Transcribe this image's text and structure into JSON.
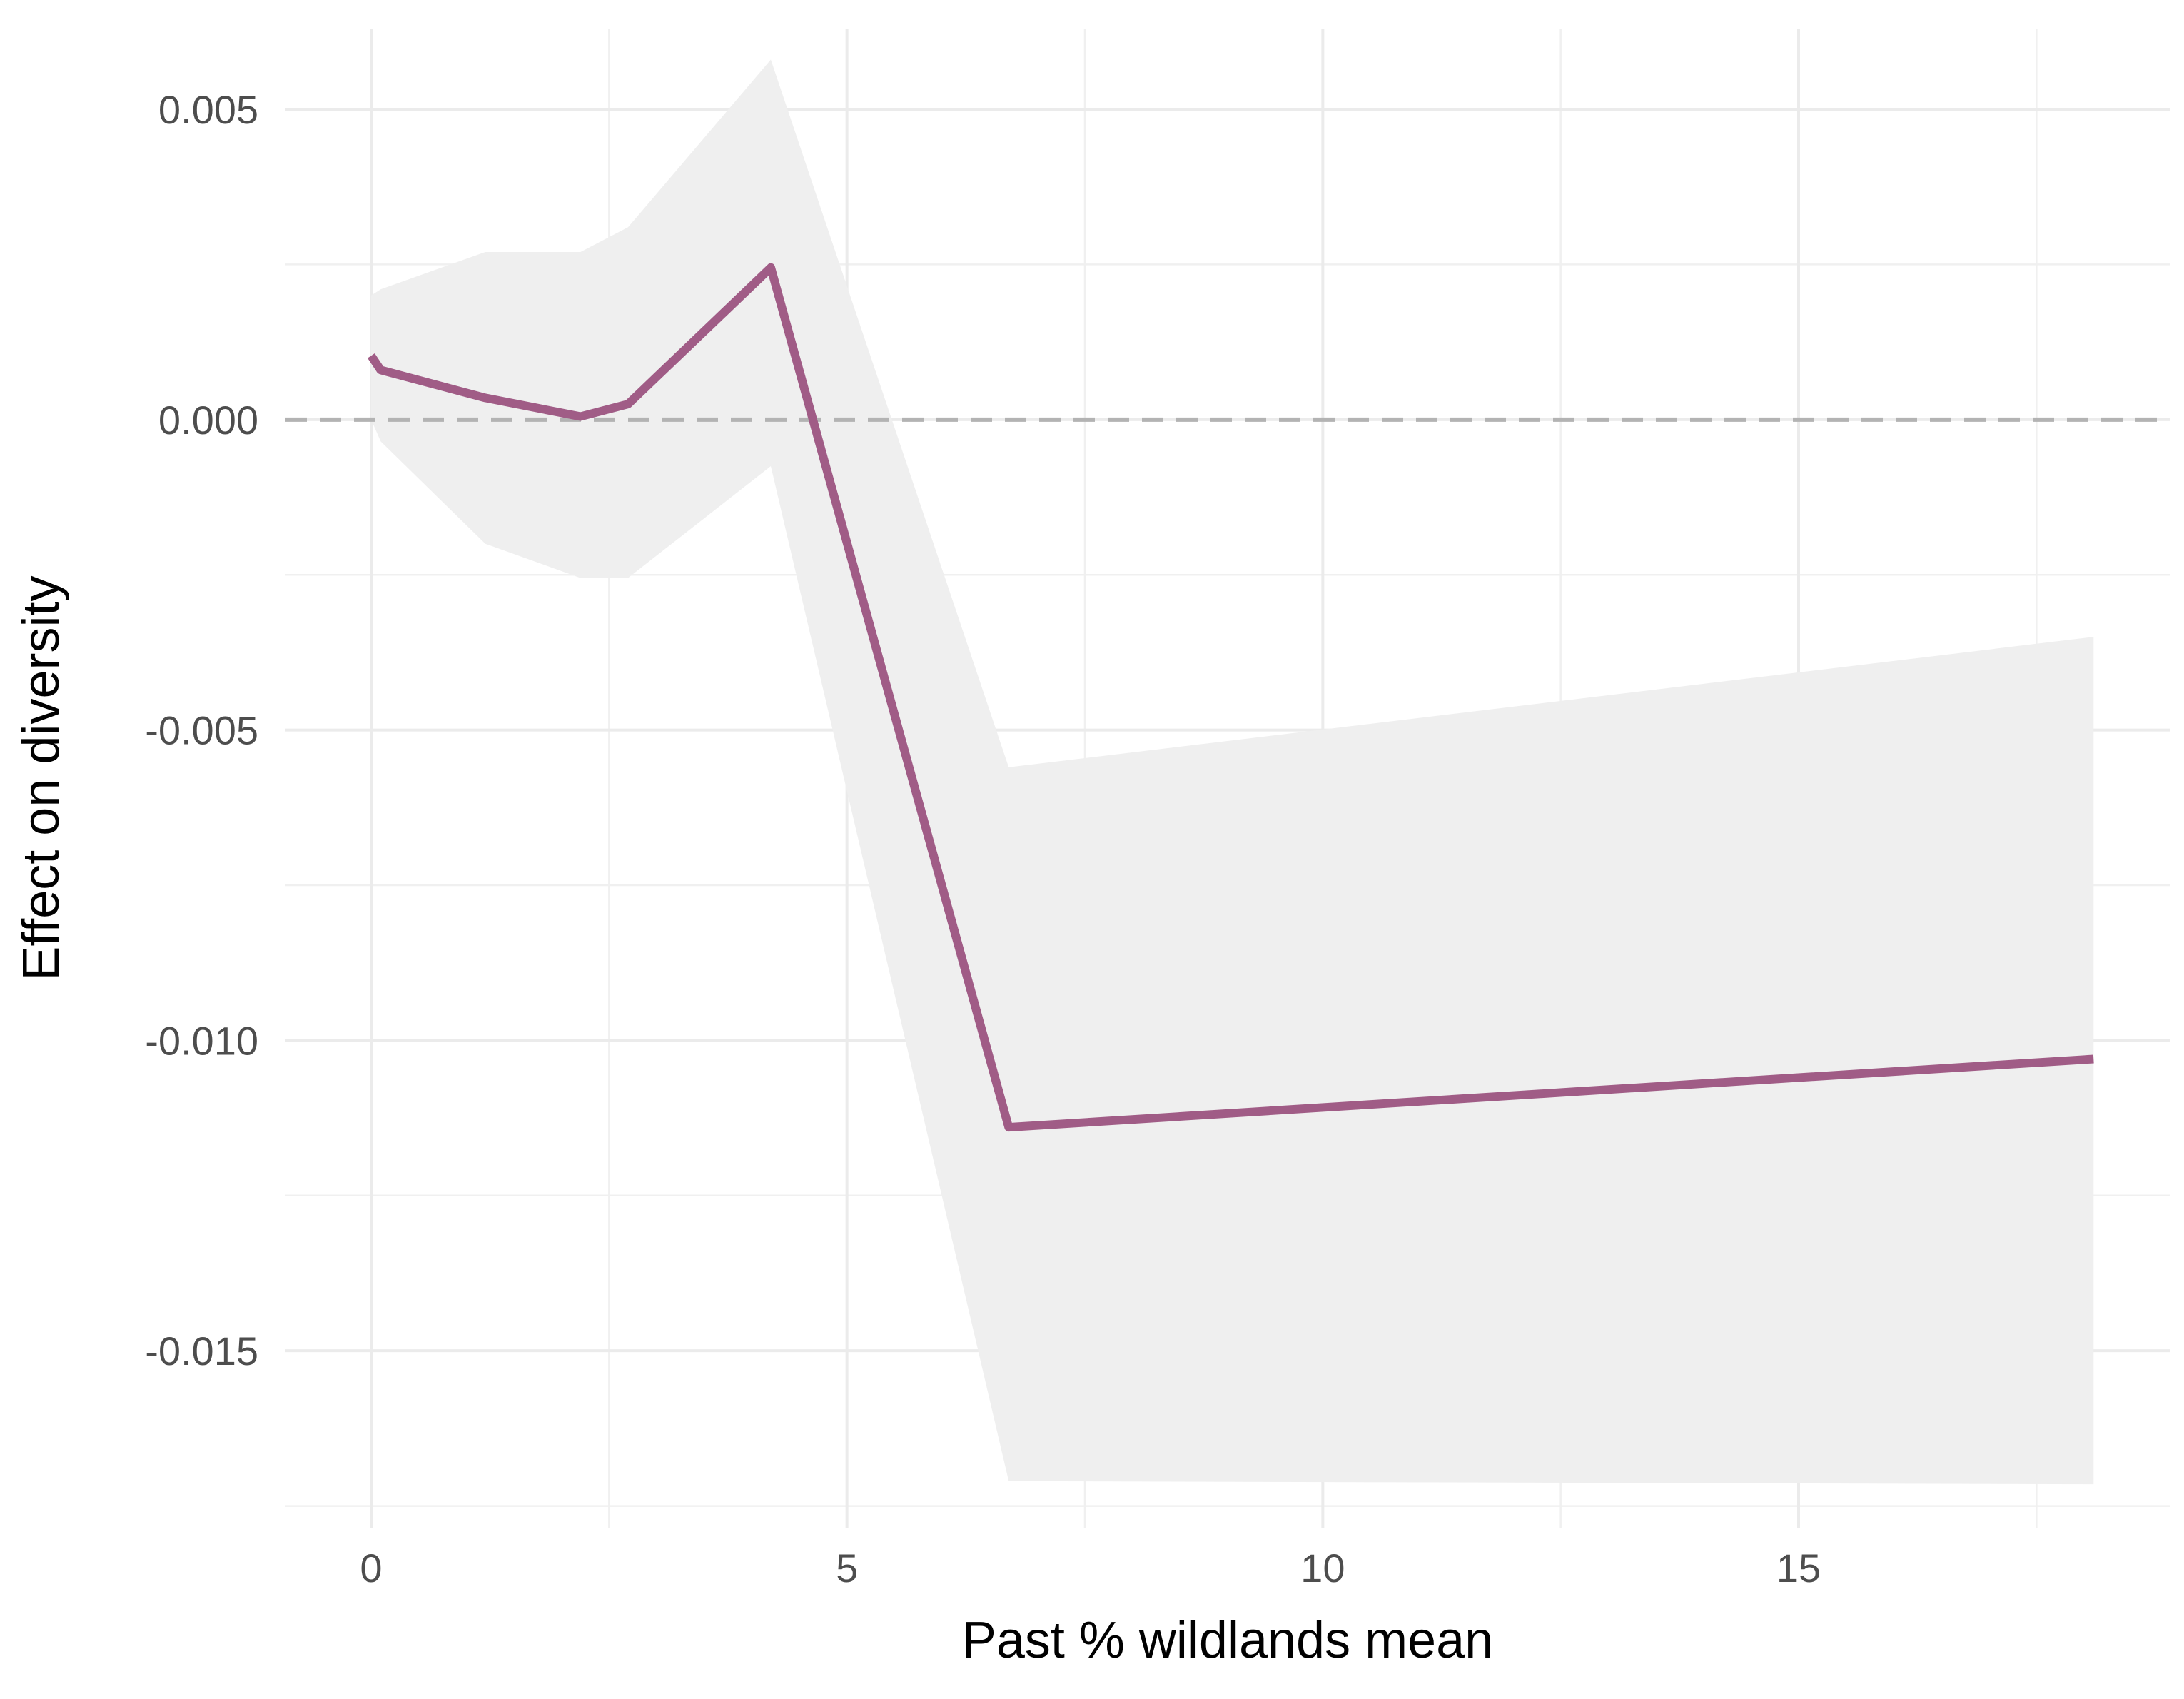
{
  "chart_data": {
    "type": "line",
    "xlabel": "Past % wildlands mean",
    "ylabel": "Effect on diversity",
    "xlim": [
      -0.9,
      18.9
    ],
    "ylim": [
      -0.01785,
      0.0063
    ],
    "x_ticks": [
      0,
      5,
      10,
      15
    ],
    "x_tick_labels": [
      "0",
      "5",
      "10",
      "15"
    ],
    "y_ticks": [
      0.005,
      0.0,
      -0.005,
      -0.01,
      -0.015
    ],
    "y_tick_labels": [
      "0.005",
      "0.000",
      "-0.005",
      "-0.010",
      "-0.015"
    ],
    "grid": true,
    "reference_line": {
      "y": 0,
      "style": "dashed",
      "color": "#b3b3b3"
    },
    "series": [
      {
        "color": "#a05c86",
        "x": [
          0.0,
          0.1,
          1.2,
          2.2,
          2.7,
          4.2,
          6.7,
          18.1
        ],
        "y": [
          0.00103,
          0.0008,
          0.00035,
          5e-05,
          0.00025,
          0.00245,
          -0.0114,
          -0.0103
        ],
        "lower": [
          0.0,
          -0.00035,
          -0.002,
          -0.00255,
          -0.00255,
          -0.00075,
          -0.0171,
          -0.01715
        ],
        "upper": [
          0.002,
          0.0021,
          0.0027,
          0.0027,
          0.0031,
          0.0058,
          -0.0056,
          -0.0035
        ],
        "band_color": "#efefef"
      }
    ]
  }
}
